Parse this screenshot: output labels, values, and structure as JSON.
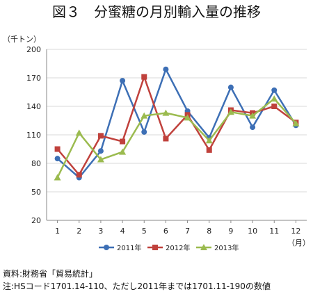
{
  "chart_data": {
    "type": "line",
    "title": "図３　分蜜糖の月別輸入量の推移",
    "ylabel": "（千トン）",
    "xlabel": "（月）",
    "ylim": [
      20,
      200
    ],
    "yticks": [
      20,
      50,
      80,
      110,
      140,
      170,
      200
    ],
    "x": [
      "1",
      "2",
      "3",
      "4",
      "5",
      "6",
      "7",
      "8",
      "9",
      "10",
      "11",
      "12"
    ],
    "grid": true,
    "legend": "bottom",
    "series": [
      {
        "name": "2011年",
        "color": "#3d6fb5",
        "marker": "circle",
        "values": [
          85,
          65,
          93,
          167,
          113,
          179,
          135,
          107,
          160,
          118,
          157,
          120
        ]
      },
      {
        "name": "2012年",
        "color": "#c0413c",
        "marker": "square",
        "values": [
          95,
          68,
          109,
          103,
          171,
          106,
          131,
          94,
          136,
          133,
          140,
          123
        ]
      },
      {
        "name": "2013年",
        "color": "#9bbb4f",
        "marker": "triangle",
        "values": [
          65,
          112,
          84,
          92,
          130,
          133,
          128,
          104,
          134,
          130,
          148,
          122
        ]
      }
    ]
  },
  "notes": {
    "source": "資料:財務省「貿易統計」",
    "note": "注:HSコード1701.14-110、ただし2011年までは1701.11-190の数値"
  }
}
